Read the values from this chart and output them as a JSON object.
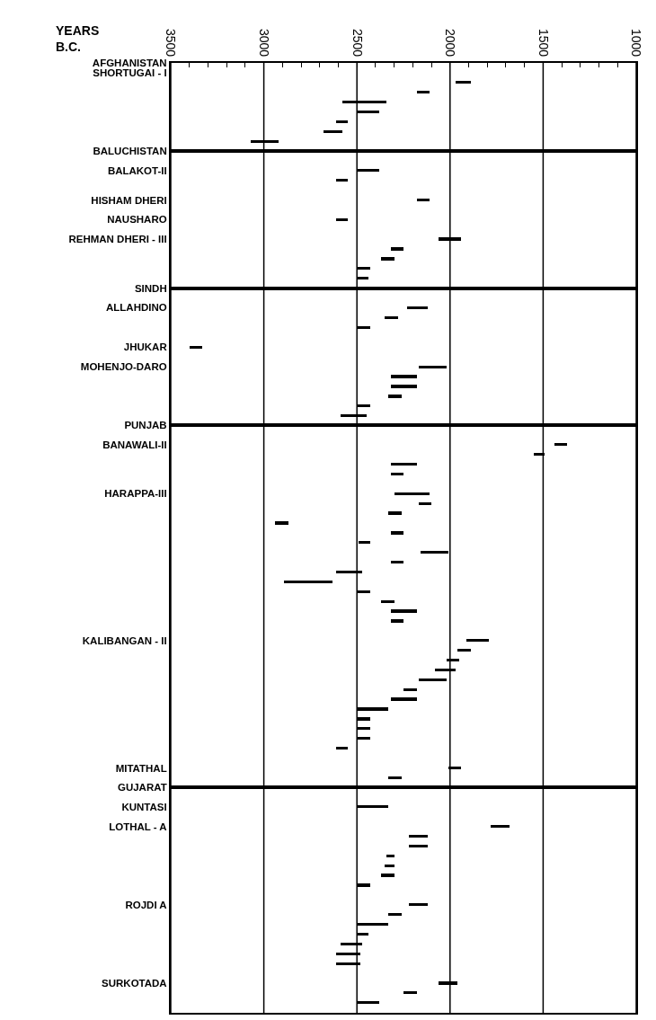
{
  "chart_data": [
    {
      "type": "bar",
      "orientation": "horizontal",
      "xlabel": "YEARS B.C.",
      "categories": [
        "AFGHANISTAN",
        "SHORTUGAI - I",
        null,
        null,
        null,
        null,
        null,
        null,
        null
      ],
      "values": [
        null,
        null,
        80,
        70,
        240,
        120,
        60,
        100,
        150
      ],
      "base": [
        null,
        null,
        1890,
        2110,
        2340,
        2380,
        2550,
        2580,
        2920
      ],
      "color": "#000000",
      "xlim": [
        3500,
        1000
      ],
      "xticks": [
        3500,
        {
          "value": 3400,
          "label": null
        },
        {
          "value": 3300,
          "label": null
        },
        {
          "value": 3200,
          "label": null
        },
        {
          "value": 3100,
          "label": null
        },
        3000,
        {
          "value": 2900,
          "label": null
        },
        {
          "value": 2800,
          "label": null
        },
        {
          "value": 2700,
          "label": null
        },
        {
          "value": 2600,
          "label": null
        },
        2500,
        {
          "value": 2400,
          "label": null
        },
        {
          "value": 2300,
          "label": null
        },
        {
          "value": 2200,
          "label": null
        },
        {
          "value": 2100,
          "label": null
        },
        2000,
        {
          "value": 1900,
          "label": null
        },
        {
          "value": 1800,
          "label": null
        },
        {
          "value": 1700,
          "label": null
        },
        {
          "value": 1600,
          "label": null
        },
        1500,
        {
          "value": 1400,
          "label": null
        },
        {
          "value": 1300,
          "label": null
        },
        {
          "value": 1200,
          "label": null
        },
        {
          "value": 1100,
          "label": null
        },
        1000
      ],
      "grid": "x"
    },
    {
      "type": "bar",
      "orientation": "horizontal",
      "categories": [
        "BALUCHISTAN",
        null,
        "BALAKOT-II",
        null,
        null,
        "HISHAM DHERI",
        null,
        "NAUSHARO",
        null,
        "REHMAN DHERI - III",
        null,
        null,
        null,
        null
      ],
      "values": [
        null,
        null,
        120,
        60,
        null,
        70,
        null,
        60,
        null,
        120,
        70,
        70,
        70,
        60
      ],
      "base": [
        null,
        null,
        2380,
        2550,
        null,
        2110,
        null,
        2550,
        null,
        1940,
        2250,
        2300,
        2430,
        2440
      ],
      "color": "#000000",
      "xlim": [
        3500,
        1000
      ],
      "xticks": [
        3500,
        3000,
        2500,
        2000,
        1500,
        1000
      ],
      "grid": "x",
      "tick_labels": "y"
    },
    {
      "type": "bar",
      "orientation": "horizontal",
      "categories": [
        "SINDH",
        null,
        "ALLAHDINO",
        null,
        null,
        null,
        "JHUKAR",
        null,
        "MOHENJO-DARO",
        null,
        null,
        null,
        null,
        null
      ],
      "values": [
        null,
        null,
        110,
        70,
        70,
        null,
        70,
        null,
        150,
        140,
        140,
        70,
        70,
        140
      ],
      "base": [
        null,
        null,
        2120,
        2280,
        2430,
        null,
        3330,
        null,
        2020,
        2180,
        2180,
        2260,
        2430,
        2450
      ],
      "color": "#000000",
      "xlim": [
        3500,
        1000
      ],
      "xticks": [
        3500,
        3000,
        2500,
        2000,
        1500,
        1000
      ],
      "grid": "x",
      "tick_labels": "y"
    },
    {
      "type": "bar",
      "orientation": "horizontal",
      "categories": [
        "PUNJAB",
        null,
        "BANAWALI-II",
        null,
        null,
        null,
        null,
        "HARAPPA-III",
        null,
        null,
        null,
        null,
        null,
        null,
        null,
        null,
        null,
        null,
        null,
        null,
        null,
        null,
        "KALIBANGAN - II",
        null,
        null,
        null,
        null,
        null,
        null,
        null,
        null,
        null,
        null,
        null,
        null,
        "MITATHAL",
        null
      ],
      "values": [
        null,
        null,
        70,
        60,
        140,
        70,
        null,
        190,
        70,
        70,
        70,
        70,
        60,
        150,
        70,
        140,
        260,
        70,
        70,
        140,
        70,
        null,
        120,
        70,
        70,
        110,
        150,
        70,
        140,
        170,
        70,
        70,
        70,
        60,
        null,
        70,
        70
      ],
      "base": [
        null,
        null,
        1370,
        1490,
        2180,
        2250,
        null,
        2110,
        2100,
        2260,
        2870,
        2250,
        2430,
        2010,
        2250,
        2470,
        2630,
        2430,
        2300,
        2180,
        2250,
        null,
        1790,
        1890,
        1950,
        1970,
        2020,
        2180,
        2180,
        2330,
        2430,
        2430,
        2430,
        2550,
        null,
        1940,
        2260
      ],
      "color": "#000000",
      "xlim": [
        3500,
        1000
      ],
      "xticks": [
        3500,
        3000,
        2500,
        2000,
        1500,
        1000
      ],
      "grid": "x",
      "tick_labels": "y"
    },
    {
      "type": "bar",
      "orientation": "horizontal",
      "categories": [
        "GUJARAT",
        null,
        "KUNTASI",
        null,
        "LOTHAL - A",
        null,
        null,
        null,
        null,
        null,
        null,
        null,
        "ROJDI A",
        null,
        null,
        null,
        null,
        null,
        null,
        null,
        "SURKOTADA",
        null,
        null
      ],
      "values": [
        null,
        null,
        170,
        null,
        100,
        100,
        100,
        40,
        50,
        70,
        70,
        null,
        100,
        70,
        170,
        60,
        120,
        130,
        130,
        null,
        100,
        70,
        120
      ],
      "base": [
        null,
        null,
        2330,
        null,
        1680,
        2120,
        2120,
        2300,
        2300,
        2300,
        2430,
        null,
        2120,
        2260,
        2330,
        2440,
        2470,
        2480,
        2480,
        null,
        1960,
        2180,
        2380
      ],
      "color": "#000000",
      "xlim": [
        3500,
        1000
      ],
      "xticks": [
        3500,
        3000,
        2500,
        2000,
        1500,
        1000
      ],
      "grid": "x",
      "tick_labels": "y"
    }
  ]
}
